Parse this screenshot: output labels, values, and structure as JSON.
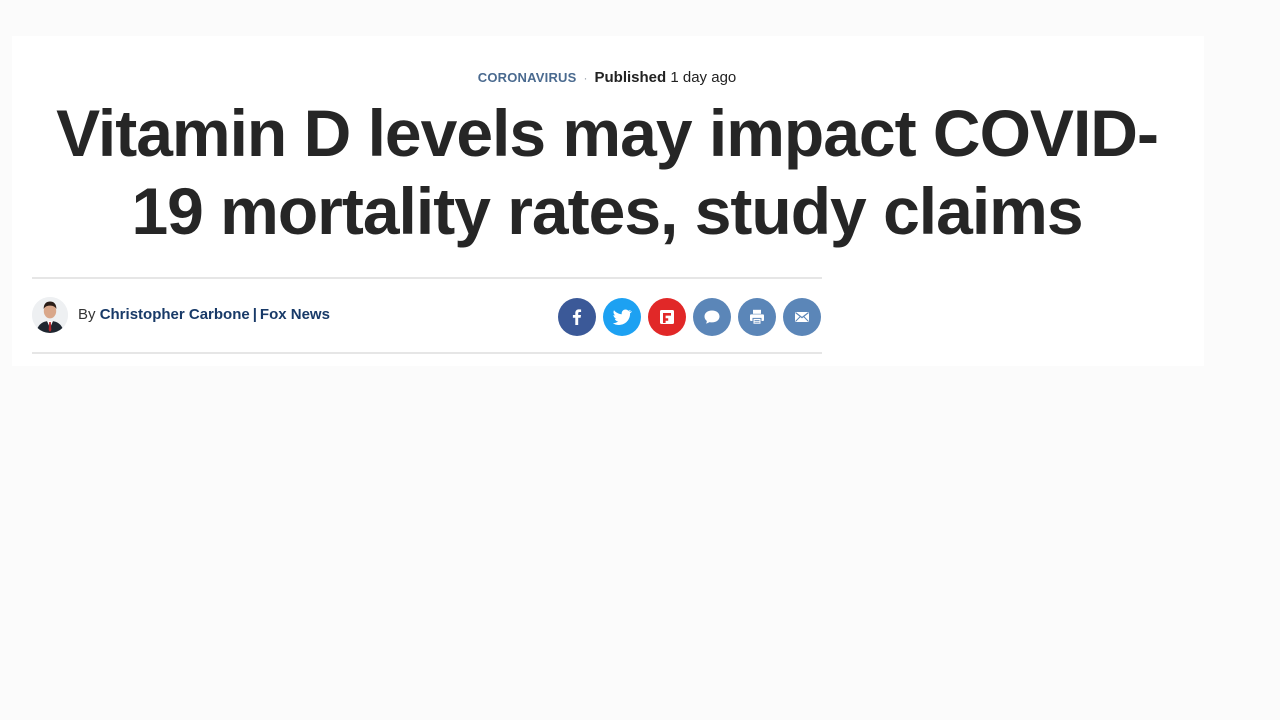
{
  "article": {
    "category": "CORONAVIRUS",
    "published_label": "Published",
    "published_time": "1 day ago",
    "headline": "Vitamin D levels may impact COVID-19 mortality rates, study claims",
    "byline_prefix": "By",
    "author": "Christopher Carbone",
    "separator": "|",
    "outlet": "Fox News"
  },
  "share": [
    {
      "icon": "facebook-icon",
      "color": "#3b5998"
    },
    {
      "icon": "twitter-icon",
      "color": "#1da1f2"
    },
    {
      "icon": "flipboard-icon",
      "color": "#e12828"
    },
    {
      "icon": "comment-icon",
      "color": "#5b86b8"
    },
    {
      "icon": "print-icon",
      "color": "#5b86b8"
    },
    {
      "icon": "email-icon",
      "color": "#5b86b8"
    }
  ],
  "colors": {
    "category": "#4a6a8f",
    "author_link": "#183a68",
    "headline": "#262626"
  }
}
